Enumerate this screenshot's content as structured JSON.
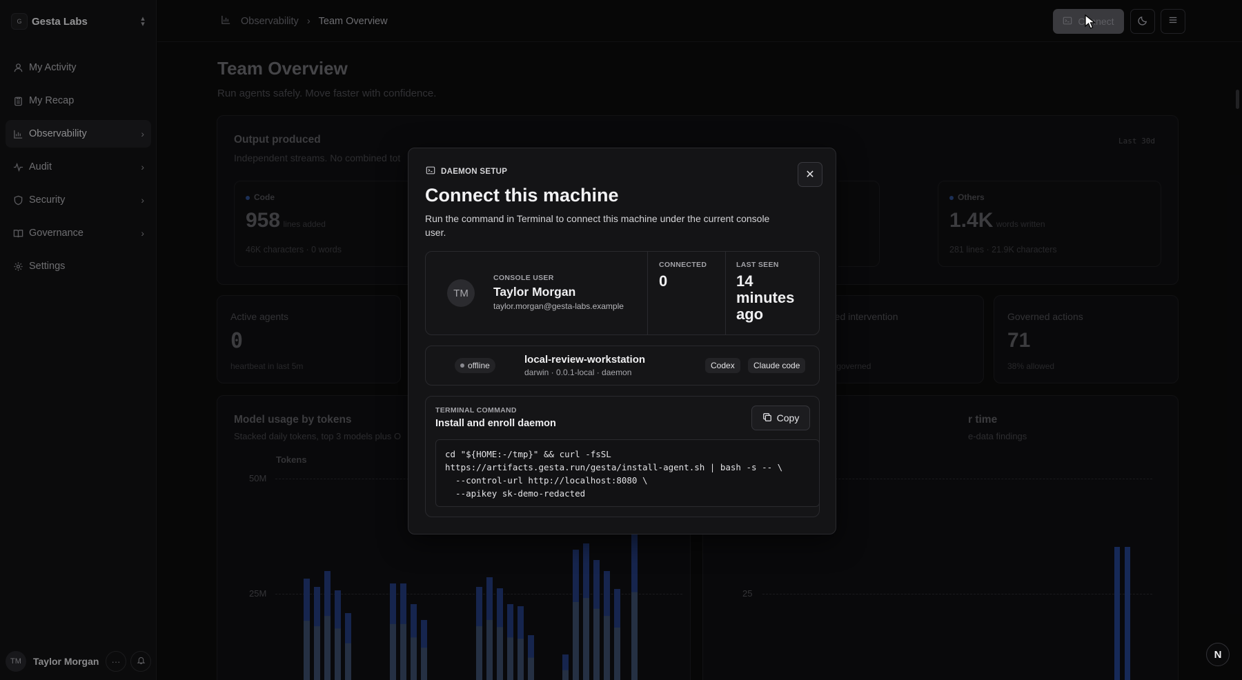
{
  "org": {
    "initial": "G",
    "name": "Gesta Labs"
  },
  "nav": [
    {
      "label": "My Activity",
      "icon": "user-icon"
    },
    {
      "label": "My Recap",
      "icon": "clipboard-icon"
    },
    {
      "label": "Observability",
      "icon": "bar-chart-icon",
      "active": true
    },
    {
      "label": "Audit",
      "icon": "activity-icon"
    },
    {
      "label": "Security",
      "icon": "shield-icon"
    },
    {
      "label": "Governance",
      "icon": "book-icon"
    },
    {
      "label": "Settings",
      "icon": "gear-icon"
    }
  ],
  "user": {
    "initials": "TM",
    "name": "Taylor Morgan"
  },
  "breadcrumb": {
    "parent": "Observability",
    "current": "Team Overview"
  },
  "topbar": {
    "connect_label": "Connect"
  },
  "page": {
    "title": "Team Overview",
    "subtitle": "Run agents safely. Move faster with confidence."
  },
  "output": {
    "title": "Output produced",
    "subtitle": "Independent streams. No combined tot",
    "range": "Last 30d",
    "code": {
      "label": "Code",
      "value": "958",
      "unit": "lines added",
      "note": "46K characters · 0 words"
    },
    "others": {
      "label": "Others",
      "value": "1.4K",
      "unit": "words written",
      "note": "281 lines · 21.9K characters"
    }
  },
  "stats": {
    "active_agents": {
      "label": "Active agents",
      "value": "0",
      "note": "heartbeat in last 5m"
    },
    "intervention": {
      "label": "red intervention",
      "note": "r governed"
    },
    "governed": {
      "label": "Governed actions",
      "value": "71",
      "note": "38% allowed"
    }
  },
  "model_usage": {
    "title": "Model usage by tokens",
    "subtitle": "Stacked daily tokens, top 3 models plus O",
    "ylabel": "Tokens",
    "tick_50m": "50M",
    "tick_25m": "25M"
  },
  "right_chart": {
    "title": "r time",
    "subtitle": "e-data findings",
    "tick_25": "25"
  },
  "modal": {
    "kicker": "DAEMON SETUP",
    "title": "Connect this machine",
    "description": "Run the command in Terminal to connect this machine under the current console user.",
    "console_user_label": "CONSOLE USER",
    "avatar_initials": "TM",
    "user_name": "Taylor Morgan",
    "user_email": "taylor.morgan@gesta-labs.example",
    "connected_label": "CONNECTED",
    "connected_value": "0",
    "last_seen_label": "LAST SEEN",
    "last_seen_value": "14 minutes ago",
    "machine": {
      "status": "offline",
      "name": "local-review-workstation",
      "meta": "darwin · 0.0.1-local · daemon",
      "tags": [
        "Codex",
        "Claude code"
      ]
    },
    "terminal_label": "TERMINAL COMMAND",
    "terminal_title": "Install and enroll daemon",
    "copy_label": "Copy",
    "command": "cd \"${HOME:-/tmp}\" && curl -fsSL\nhttps://artifacts.gesta.run/gesta/install-agent.sh | bash -s -- \\\n  --control-url http://localhost:8080 \\\n  --apikey sk-demo-redacted"
  },
  "corner_badge": "N"
}
